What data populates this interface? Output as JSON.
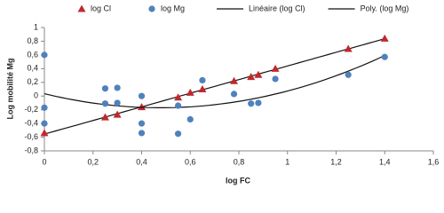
{
  "chart_data": {
    "type": "scatter",
    "x_label": "log FC",
    "y_label": "Log mobilité Mg",
    "xlim": [
      0,
      1.6
    ],
    "xticks": [
      0,
      {
        "value": 0.2,
        "label": "0,2"
      },
      {
        "value": 0.4,
        "label": "0,4"
      },
      {
        "value": 0.6,
        "label": "0,6"
      },
      {
        "value": 0.8,
        "label": "0,8"
      },
      1,
      {
        "value": 1.2,
        "label": "1,2"
      },
      {
        "value": 1.4,
        "label": "1,4"
      },
      {
        "value": 1.6,
        "label": "1,6"
      }
    ],
    "ylim": [
      -0.8,
      1
    ],
    "yticks": [
      {
        "value": -0.8,
        "label": "-0,8"
      },
      {
        "value": -0.6,
        "label": "-0,6"
      },
      {
        "value": -0.4,
        "label": "-0,4"
      },
      {
        "value": -0.2,
        "label": "-0,2"
      },
      0,
      {
        "value": 0.2,
        "label": "0,2"
      },
      {
        "value": 0.4,
        "label": "0,4"
      },
      {
        "value": 0.6,
        "label": "0,6"
      },
      {
        "value": 0.8,
        "label": "0,8"
      },
      1
    ],
    "grid": false,
    "legend": "top",
    "series": [
      {
        "name": "log Cl",
        "color": "#c0282e",
        "marker": "triangle",
        "x": [
          0,
          0.25,
          0.3,
          0.4,
          0.55,
          0.6,
          0.65,
          0.78,
          0.85,
          0.88,
          0.95,
          1.25,
          1.4
        ],
        "values": [
          -0.54,
          -0.31,
          -0.27,
          -0.16,
          -0.02,
          0.05,
          0.1,
          0.22,
          0.28,
          0.31,
          0.4,
          0.69,
          0.84
        ],
        "trendline": {
          "name": "Linéaire (log Cl)",
          "kind": "polynomial",
          "order": 1,
          "color": "#111111"
        }
      },
      {
        "name": "log Mg",
        "color": "#4f81bd",
        "marker": "circle",
        "x": [
          0,
          0,
          0,
          0.25,
          0.25,
          0.3,
          0.3,
          0.4,
          0.4,
          0.4,
          0.55,
          0.55,
          0.6,
          0.65,
          0.78,
          0.85,
          0.88,
          0.95,
          1.25,
          1.4
        ],
        "values": [
          0.6,
          -0.17,
          -0.4,
          0.11,
          -0.11,
          0.12,
          -0.1,
          0,
          -0.4,
          -0.54,
          -0.55,
          -0.14,
          -0.34,
          0.23,
          0.03,
          -0.11,
          -0.1,
          0.25,
          0.31,
          0.57
        ],
        "trendline": {
          "name": "Poly. (log Mg)",
          "kind": "polynomial",
          "order": 2,
          "color": "#111111"
        }
      }
    ]
  }
}
